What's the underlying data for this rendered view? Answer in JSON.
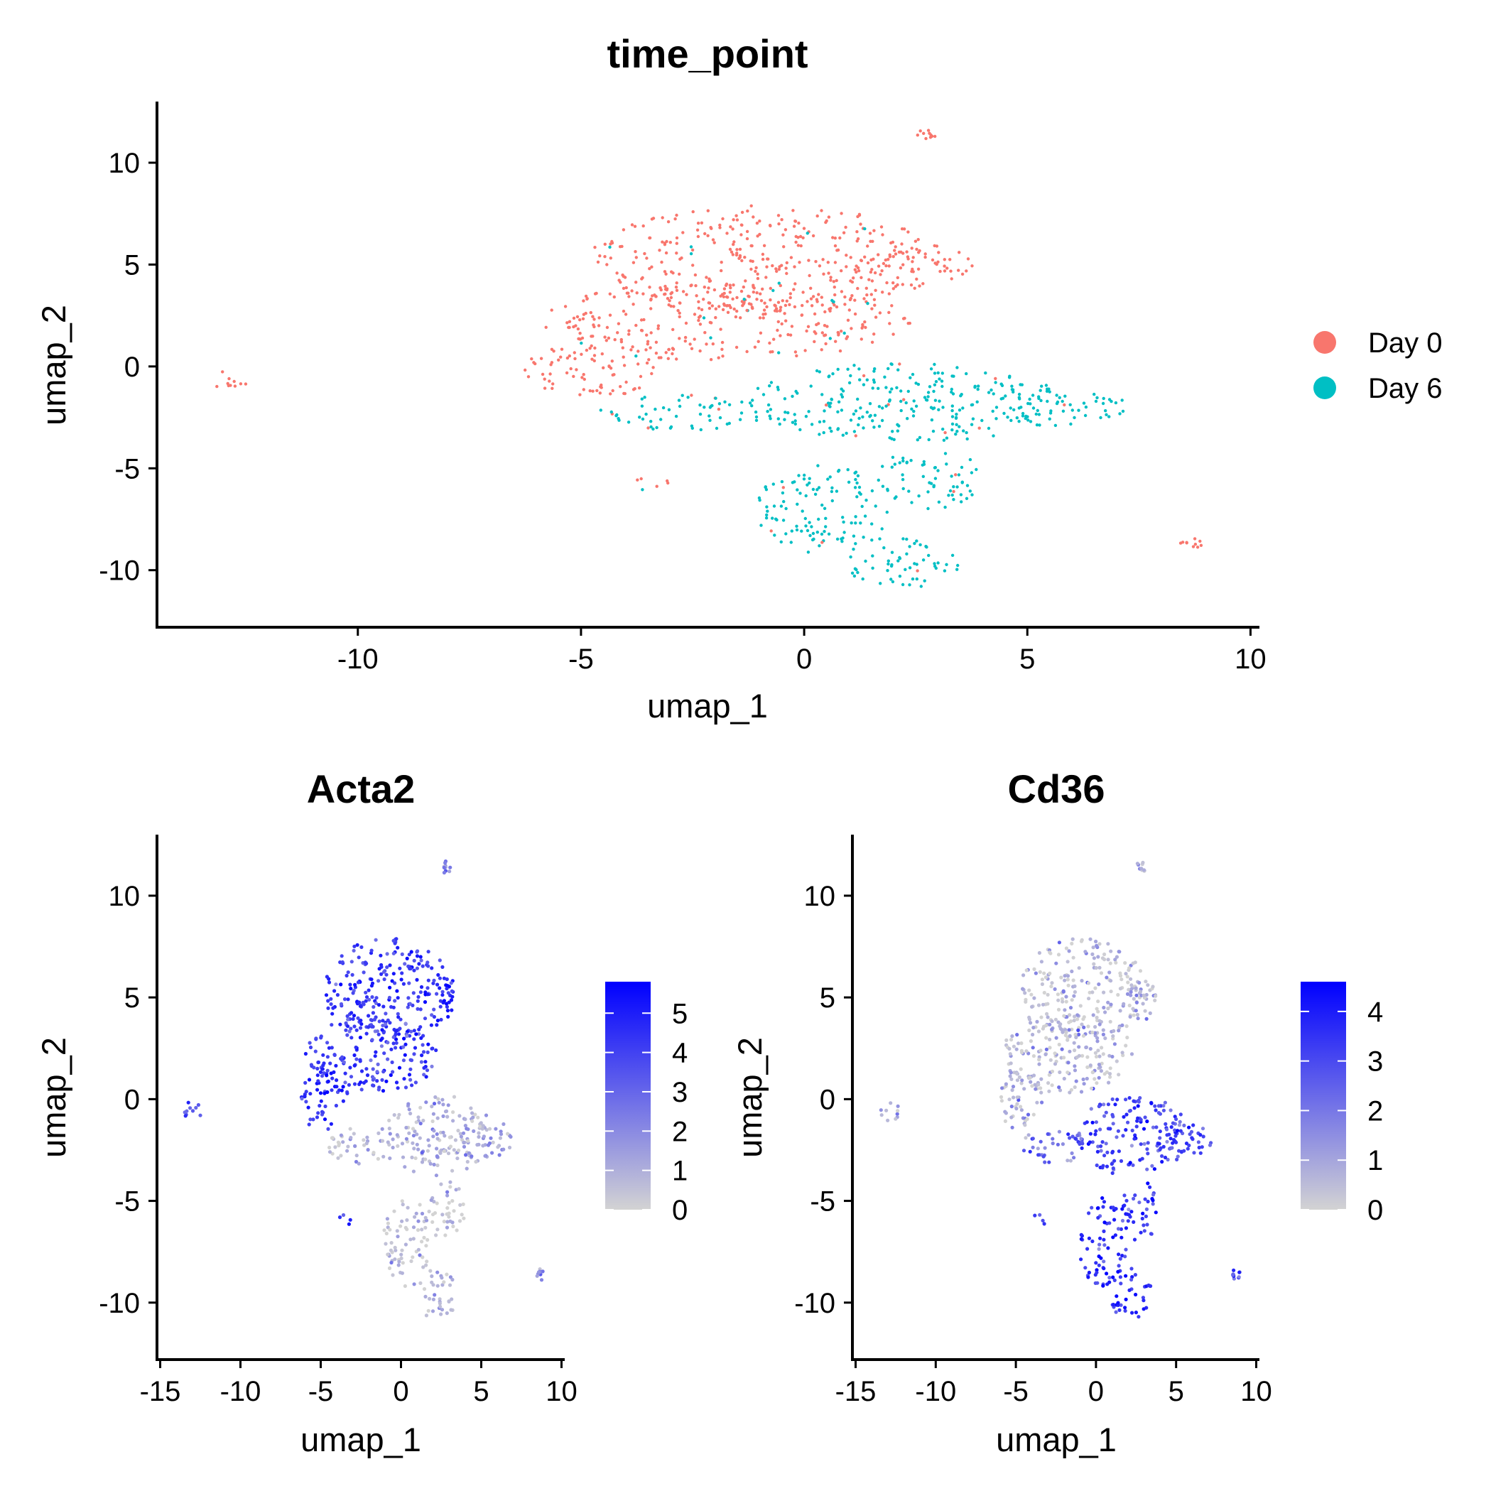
{
  "chart_data": [
    {
      "id": "time_point",
      "type": "scatter",
      "title": "time_point",
      "xlabel": "umap_1",
      "ylabel": "umap_2",
      "xlim": [
        -14.5,
        10.2
      ],
      "ylim": [
        -12.8,
        13
      ],
      "xticks": [
        -10,
        -5,
        0,
        5,
        10
      ],
      "yticks": [
        -10,
        -5,
        0,
        5,
        10
      ],
      "grid": false,
      "legend": {
        "position": "right",
        "entries": [
          {
            "label": "Day 0",
            "color": "#F8766D"
          },
          {
            "label": "Day 6",
            "color": "#00BFC4"
          }
        ]
      },
      "regions": [
        {
          "group": "Day 0",
          "cx": -0.8,
          "cy": 5.3,
          "rx": 4.0,
          "ry": 2.6
        },
        {
          "group": "Day 0",
          "cx": -1.8,
          "cy": 2.2,
          "rx": 4.2,
          "ry": 1.9
        },
        {
          "group": "Day 0",
          "cx": -4.8,
          "cy": 0.0,
          "rx": 1.5,
          "ry": 1.6
        },
        {
          "group": "Day 0",
          "cx": 2.6,
          "cy": 4.9,
          "rx": 1.2,
          "ry": 1.1
        },
        {
          "group": "Day 0",
          "cx": -3.4,
          "cy": -5.8,
          "rx": 0.45,
          "ry": 0.4
        },
        {
          "group": "Day 0",
          "cx": -12.9,
          "cy": -0.6,
          "rx": 0.6,
          "ry": 0.6,
          "sparse": true
        },
        {
          "group": "Day 0",
          "cx": 2.8,
          "cy": 11.4,
          "rx": 0.3,
          "ry": 0.3,
          "sparse": true
        },
        {
          "group": "Day 0",
          "cx": 8.7,
          "cy": -8.6,
          "rx": 0.3,
          "ry": 0.3,
          "sparse": true
        },
        {
          "group": "Day 6",
          "cx": 2.3,
          "cy": -1.8,
          "rx": 3.6,
          "ry": 2.0
        },
        {
          "group": "Day 6",
          "cx": 5.5,
          "cy": -2.0,
          "rx": 1.8,
          "ry": 0.9
        },
        {
          "group": "Day 6",
          "cx": -2.6,
          "cy": -2.3,
          "rx": 2.0,
          "ry": 0.9
        },
        {
          "group": "Day 6",
          "cx": 0.4,
          "cy": -7.0,
          "rx": 1.5,
          "ry": 2.2
        },
        {
          "group": "Day 6",
          "cx": 2.2,
          "cy": -9.6,
          "rx": 1.3,
          "ry": 1.3
        },
        {
          "group": "Day 6",
          "cx": 2.8,
          "cy": -5.5,
          "rx": 1.2,
          "ry": 1.5
        }
      ]
    },
    {
      "id": "acta2",
      "type": "scatter",
      "title": "Acta2",
      "xlabel": "umap_1",
      "ylabel": "umap_2",
      "xlim": [
        -15.2,
        10.2
      ],
      "ylim": [
        -12.8,
        13
      ],
      "xticks": [
        -15,
        -10,
        -5,
        0,
        5,
        10
      ],
      "yticks": [
        -10,
        -5,
        0,
        5,
        10
      ],
      "grid": false,
      "colorbar": {
        "min": 0,
        "max": 5.8,
        "ticks": [
          0,
          1,
          2,
          3,
          4,
          5
        ],
        "low_color": "#D3D3D3",
        "high_color": "#0000FF"
      },
      "regions": [
        {
          "cx": -0.8,
          "cy": 5.3,
          "rx": 4.0,
          "ry": 2.6,
          "level": 4.3
        },
        {
          "cx": -1.8,
          "cy": 2.2,
          "rx": 4.2,
          "ry": 1.9,
          "level": 4.0
        },
        {
          "cx": -4.8,
          "cy": 0.0,
          "rx": 1.5,
          "ry": 1.6,
          "level": 4.6
        },
        {
          "cx": 2.6,
          "cy": 4.9,
          "rx": 1.2,
          "ry": 1.1,
          "level": 4.8
        },
        {
          "cx": -3.4,
          "cy": -5.8,
          "rx": 0.45,
          "ry": 0.4,
          "level": 4.2
        },
        {
          "cx": -12.9,
          "cy": -0.6,
          "rx": 0.6,
          "ry": 0.6,
          "level": 3.8,
          "sparse": true
        },
        {
          "cx": 2.8,
          "cy": 11.4,
          "rx": 0.3,
          "ry": 0.3,
          "level": 2.5,
          "sparse": true
        },
        {
          "cx": 8.7,
          "cy": -8.6,
          "rx": 0.3,
          "ry": 0.3,
          "level": 2.0,
          "sparse": true
        },
        {
          "cx": 2.3,
          "cy": -1.8,
          "rx": 3.6,
          "ry": 2.0,
          "level": 0.9
        },
        {
          "cx": 5.5,
          "cy": -2.0,
          "rx": 1.8,
          "ry": 0.9,
          "level": 1.3
        },
        {
          "cx": -2.6,
          "cy": -2.3,
          "rx": 2.0,
          "ry": 0.9,
          "level": 0.5
        },
        {
          "cx": 0.4,
          "cy": -7.0,
          "rx": 1.5,
          "ry": 2.2,
          "level": 0.3
        },
        {
          "cx": 2.2,
          "cy": -9.6,
          "rx": 1.3,
          "ry": 1.3,
          "level": 1.0
        },
        {
          "cx": 2.8,
          "cy": -5.5,
          "rx": 1.2,
          "ry": 1.5,
          "level": 0.4
        }
      ]
    },
    {
      "id": "cd36",
      "type": "scatter",
      "title": "Cd36",
      "xlabel": "umap_1",
      "ylabel": "umap_2",
      "xlim": [
        -15.2,
        10.2
      ],
      "ylim": [
        -12.8,
        13
      ],
      "xticks": [
        -15,
        -10,
        -5,
        0,
        5,
        10
      ],
      "yticks": [
        -10,
        -5,
        0,
        5,
        10
      ],
      "grid": false,
      "colorbar": {
        "min": 0,
        "max": 4.6,
        "ticks": [
          0,
          1,
          2,
          3,
          4
        ],
        "low_color": "#D3D3D3",
        "high_color": "#0000FF"
      },
      "regions": [
        {
          "cx": -0.8,
          "cy": 5.3,
          "rx": 4.0,
          "ry": 2.6,
          "level": 0.4
        },
        {
          "cx": -1.8,
          "cy": 2.2,
          "rx": 4.2,
          "ry": 1.9,
          "level": 0.5
        },
        {
          "cx": -4.8,
          "cy": 0.0,
          "rx": 1.5,
          "ry": 1.6,
          "level": 0.6
        },
        {
          "cx": 2.6,
          "cy": 4.9,
          "rx": 1.2,
          "ry": 1.1,
          "level": 0.7
        },
        {
          "cx": -3.4,
          "cy": -5.8,
          "rx": 0.45,
          "ry": 0.4,
          "level": 3.0
        },
        {
          "cx": -12.9,
          "cy": -0.6,
          "rx": 0.6,
          "ry": 0.6,
          "level": 0.8,
          "sparse": true
        },
        {
          "cx": 2.8,
          "cy": 11.4,
          "rx": 0.3,
          "ry": 0.3,
          "level": 0.3,
          "sparse": true
        },
        {
          "cx": 8.7,
          "cy": -8.6,
          "rx": 0.3,
          "ry": 0.3,
          "level": 3.0,
          "sparse": true
        },
        {
          "cx": 2.3,
          "cy": -1.8,
          "rx": 3.6,
          "ry": 2.0,
          "level": 3.1
        },
        {
          "cx": 5.5,
          "cy": -2.0,
          "rx": 1.8,
          "ry": 0.9,
          "level": 3.3
        },
        {
          "cx": -2.6,
          "cy": -2.3,
          "rx": 2.0,
          "ry": 0.9,
          "level": 2.2
        },
        {
          "cx": 0.4,
          "cy": -7.0,
          "rx": 1.5,
          "ry": 2.2,
          "level": 3.6
        },
        {
          "cx": 2.2,
          "cy": -9.6,
          "rx": 1.3,
          "ry": 1.3,
          "level": 3.5
        },
        {
          "cx": 2.8,
          "cy": -5.5,
          "rx": 1.2,
          "ry": 1.5,
          "level": 3.4
        }
      ]
    }
  ]
}
